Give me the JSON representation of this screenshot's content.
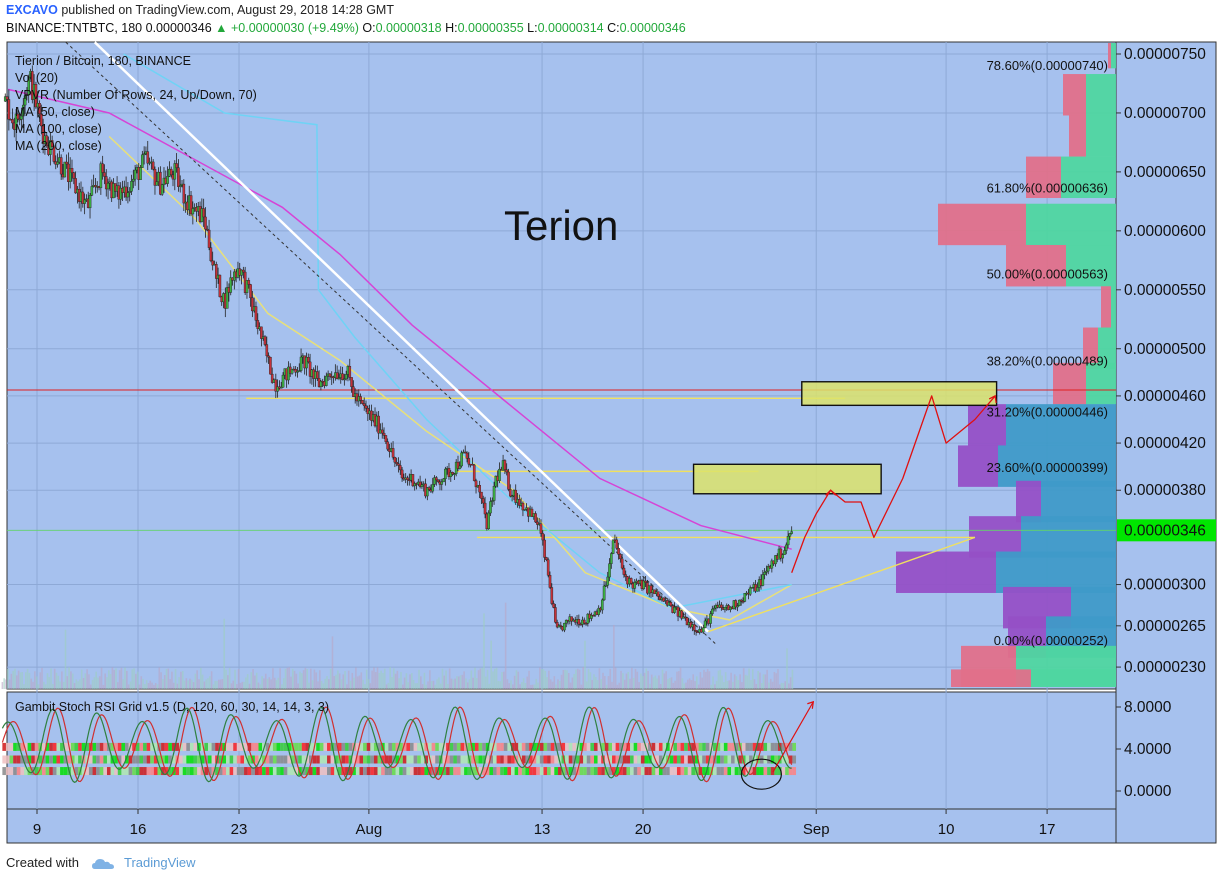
{
  "header": {
    "author": "EXCAVO",
    "published_text": "published on TradingView.com, August 29, 2018 14:28 GMT",
    "symbol": "BINANCE:TNTBTC, 180",
    "last": "0.00000346",
    "change": "▲ +0.00000030 (+9.49%)",
    "o_label": "O:",
    "o_value": "0.00000318",
    "h_label": "H:",
    "h_value": "0.00000355",
    "l_label": "L:",
    "l_value": "0.00000314",
    "c_label": "C:",
    "c_value": "0.00000346"
  },
  "colors": {
    "chart_bg": "#a6c1ee",
    "up_candle": "#3cb043",
    "down_candle": "#c4313a",
    "ma50": "#e8e07a",
    "ma100": "#6fd3f5",
    "ma200": "#d644d6",
    "vpvr_up": "#4fd6a0",
    "vpvr_down": "#e0708a",
    "vpvr_up_va": "#3f9ac8",
    "vpvr_down_va": "#9550c6",
    "zone_fill": "#dce36a",
    "price_tag": "#00e600",
    "arrow": "#e01010"
  },
  "legend": [
    "Tierion / Bitcoin, 180, BINANCE",
    "Vol (20)",
    "VPVR (Number Of Rows, 24, Up/Down, 70)",
    "MA (50, close)",
    "MA (100, close)",
    "MA (200, close)"
  ],
  "annotation_text": "Terion",
  "oscillator_title": "Gambit Stoch RSI Grid v1.5 (D, 120, 60, 30, 14, 14, 3, 3)",
  "footer": {
    "created_with": "Created with",
    "brand": "TradingView"
  },
  "chart_data": {
    "type": "candlestick",
    "title": "Tierion / Bitcoin, 180, BINANCE",
    "symbol": "BINANCE:TNTBTC",
    "interval": "180",
    "price_ticks": [
      {
        "value": 7.5e-06,
        "label": "0.00000750"
      },
      {
        "value": 7e-06,
        "label": "0.00000700"
      },
      {
        "value": 6.5e-06,
        "label": "0.00000650"
      },
      {
        "value": 6e-06,
        "label": "0.00000600"
      },
      {
        "value": 5.5e-06,
        "label": "0.00000550"
      },
      {
        "value": 5e-06,
        "label": "0.00000500"
      },
      {
        "value": 4.6e-06,
        "label": "0.00000460"
      },
      {
        "value": 4.2e-06,
        "label": "0.00000420"
      },
      {
        "value": 3.8e-06,
        "label": "0.00000380"
      },
      {
        "value": 3e-06,
        "label": "0.00000300"
      },
      {
        "value": 2.65e-06,
        "label": "0.00000265"
      },
      {
        "value": 2.3e-06,
        "label": "0.00000230"
      }
    ],
    "last_price": {
      "value": 3.46e-06,
      "label": "0.00000346"
    },
    "date_ticks": [
      {
        "day": 9,
        "label": "9"
      },
      {
        "day": 16,
        "label": "16"
      },
      {
        "day": 23,
        "label": "23"
      },
      {
        "day": 32,
        "label": "Aug"
      },
      {
        "day": 44,
        "label": "13"
      },
      {
        "day": 51,
        "label": "20"
      },
      {
        "day": 63,
        "label": "Sep"
      },
      {
        "day": 72,
        "label": "10"
      },
      {
        "day": 79,
        "label": "17"
      }
    ],
    "fib_levels": [
      {
        "ratio": "78.60%",
        "price": 7.4e-06,
        "label": "78.60%(0.00000740)"
      },
      {
        "ratio": "61.80%",
        "price": 6.36e-06,
        "label": "61.80%(0.00000636)"
      },
      {
        "ratio": "50.00%",
        "price": 5.63e-06,
        "label": "50.00%(0.00000563)"
      },
      {
        "ratio": "38.20%",
        "price": 4.89e-06,
        "label": "38.20%(0.00000489)"
      },
      {
        "ratio": "31.20%",
        "price": 4.46e-06,
        "label": "31.20%(0.00000446)"
      },
      {
        "ratio": "23.60%",
        "price": 3.99e-06,
        "label": "23.60%(0.00000399)"
      },
      {
        "ratio": "0.00%",
        "price": 2.52e-06,
        "label": "0.00%(0.00000252)"
      }
    ],
    "price_path": [
      [
        6.8,
        7.1e-06
      ],
      [
        7.5,
        6.9e-06
      ],
      [
        8.5,
        7.3e-06
      ],
      [
        9.5,
        6.8e-06
      ],
      [
        10.5,
        6.6e-06
      ],
      [
        11.5,
        6.4e-06
      ],
      [
        12.5,
        6.2e-06
      ],
      [
        13.5,
        6.5e-06
      ],
      [
        14.5,
        6.3e-06
      ],
      [
        15.5,
        6.4e-06
      ],
      [
        16.5,
        6.6e-06
      ],
      [
        17.5,
        6.4e-06
      ],
      [
        18.5,
        6.5e-06
      ],
      [
        19.2,
        6.3e-06
      ],
      [
        19.8,
        6.2e-06
      ],
      [
        20.6,
        6.1e-06
      ],
      [
        21.4,
        5.6e-06
      ],
      [
        22,
        5.4e-06
      ],
      [
        22.5,
        5.6e-06
      ],
      [
        23,
        5.7e-06
      ],
      [
        23.6,
        5.5e-06
      ],
      [
        24.3,
        5.2e-06
      ],
      [
        25,
        4.9e-06
      ],
      [
        25.5,
        4.7e-06
      ],
      [
        26.5,
        4.8e-06
      ],
      [
        27.5,
        4.9e-06
      ],
      [
        28.5,
        4.7e-06
      ],
      [
        29.5,
        4.8e-06
      ],
      [
        30.5,
        4.8e-06
      ],
      [
        31,
        4.6e-06
      ],
      [
        31.6,
        4.5e-06
      ],
      [
        32.3,
        4.4e-06
      ],
      [
        33,
        4.3e-06
      ],
      [
        33.6,
        4.1e-06
      ],
      [
        34.3,
        3.9e-06
      ],
      [
        35,
        3.9e-06
      ],
      [
        36,
        3.8e-06
      ],
      [
        37,
        3.9e-06
      ],
      [
        38,
        4e-06
      ],
      [
        38.6,
        4.1e-06
      ],
      [
        39.1,
        4e-06
      ],
      [
        39.6,
        3.8e-06
      ],
      [
        40.2,
        3.5e-06
      ],
      [
        40.8,
        3.9e-06
      ],
      [
        41.3,
        4e-06
      ],
      [
        41.8,
        3.8e-06
      ],
      [
        42.5,
        3.7e-06
      ],
      [
        43.2,
        3.6e-06
      ],
      [
        43.8,
        3.5e-06
      ],
      [
        44.4,
        3.1e-06
      ],
      [
        45,
        2.6e-06
      ],
      [
        46,
        2.7e-06
      ],
      [
        47,
        2.7e-06
      ],
      [
        48,
        2.8e-06
      ],
      [
        48.6,
        3.1e-06
      ],
      [
        49,
        3.4e-06
      ],
      [
        49.6,
        3.1e-06
      ],
      [
        50.2,
        3e-06
      ],
      [
        51,
        3e-06
      ],
      [
        52,
        2.9e-06
      ],
      [
        53,
        2.8e-06
      ],
      [
        54,
        2.7e-06
      ],
      [
        55,
        2.6e-06
      ],
      [
        56,
        2.8e-06
      ],
      [
        57,
        2.8e-06
      ],
      [
        58,
        2.9e-06
      ],
      [
        59,
        3e-06
      ],
      [
        60,
        3.2e-06
      ],
      [
        60.8,
        3.3e-06
      ],
      [
        61.3,
        3.46e-06
      ]
    ],
    "volume_peak_days": [
      11,
      22,
      29.5,
      40,
      40.5,
      41.5,
      47,
      49,
      61
    ],
    "moving_averages": [
      {
        "name": "MA (50, close)",
        "points": [
          [
            14,
            6.8e-06
          ],
          [
            20,
            6.1e-06
          ],
          [
            25,
            5.3e-06
          ],
          [
            30,
            4.9e-06
          ],
          [
            36,
            4.3e-06
          ],
          [
            42,
            3.8e-06
          ],
          [
            47,
            3.1e-06
          ],
          [
            53,
            2.8e-06
          ],
          [
            57,
            2.7e-06
          ],
          [
            61.3,
            3e-06
          ]
        ]
      },
      {
        "name": "MA (100, close)",
        "points": [
          [
            15,
            7.5e-06
          ],
          [
            22,
            7e-06
          ],
          [
            28.4,
            6.9e-06
          ],
          [
            28.5,
            5.5e-06
          ],
          [
            31,
            5.1e-06
          ],
          [
            36,
            4.4e-06
          ],
          [
            42,
            3.7e-06
          ],
          [
            48,
            3.1e-06
          ],
          [
            53,
            2.8e-06
          ],
          [
            61.3,
            3e-06
          ]
        ]
      },
      {
        "name": "MA (200, close)",
        "points": [
          [
            7,
            7.2e-06
          ],
          [
            14,
            7e-06
          ],
          [
            20,
            6.6e-06
          ],
          [
            26,
            6.2e-06
          ],
          [
            30,
            5.8e-06
          ],
          [
            35,
            5.2e-06
          ],
          [
            42,
            4.5e-06
          ],
          [
            48,
            3.9e-06
          ],
          [
            55,
            3.5e-06
          ],
          [
            61.3,
            3.3e-06
          ]
        ]
      }
    ],
    "trend_lines": [
      {
        "kind": "white_downtrend",
        "from": [
          13,
          7.6e-06
        ],
        "to": [
          55.5,
          2.6e-06
        ]
      },
      {
        "kind": "dotted_downtrend",
        "from": [
          11,
          7.6e-06
        ],
        "to": [
          56,
          2.5e-06
        ]
      }
    ],
    "horizontal_levels": [
      {
        "kind": "red_line",
        "price": 4.65e-06
      },
      {
        "kind": "yellow_line",
        "price": 4.58e-06,
        "from": 23.5,
        "to": 65
      },
      {
        "kind": "yellow_line",
        "price": 3.96e-06,
        "from": 38,
        "to": 59
      },
      {
        "kind": "triangle_top",
        "price": 3.4e-06,
        "from": 39.5,
        "to": 74
      }
    ],
    "triangle": {
      "apex": [
        55.5,
        2.6e-06
      ],
      "to": [
        74,
        3.4e-06
      ]
    },
    "target_zones": [
      {
        "from": 54.5,
        "to": 67.5,
        "high": 4.02e-06,
        "low": 3.77e-06
      },
      {
        "from": 62,
        "to": 75.5,
        "high": 4.72e-06,
        "low": 4.52e-06
      }
    ],
    "forecast_path": [
      [
        61.3,
        3.1e-06
      ],
      [
        62.2,
        3.4e-06
      ],
      [
        63,
        3.6e-06
      ],
      [
        64,
        3.8e-06
      ],
      [
        65,
        3.7e-06
      ],
      [
        66.1,
        3.7e-06
      ],
      [
        67,
        3.4e-06
      ],
      [
        69,
        3.9e-06
      ],
      [
        71,
        4.6e-06
      ],
      [
        72,
        4.2e-06
      ],
      [
        74,
        4.4e-06
      ],
      [
        75.4,
        4.6e-06
      ]
    ],
    "vpvr": [
      {
        "price": 7.55e-06,
        "up": 5,
        "down": 3,
        "value_area": false
      },
      {
        "price": 7.15e-06,
        "up": 30,
        "down": 23,
        "value_area": false
      },
      {
        "price": 6.8e-06,
        "up": 30,
        "down": 17,
        "value_area": false
      },
      {
        "price": 6.45e-06,
        "up": 55,
        "down": 35,
        "value_area": false
      },
      {
        "price": 6.05e-06,
        "up": 90,
        "down": 88,
        "value_area": false
      },
      {
        "price": 5.7e-06,
        "up": 50,
        "down": 60,
        "value_area": false
      },
      {
        "price": 5.35e-06,
        "up": 5,
        "down": 10,
        "value_area": false
      },
      {
        "price": 5e-06,
        "up": 18,
        "down": 15,
        "value_area": false
      },
      {
        "price": 4.7e-06,
        "up": 30,
        "down": 33,
        "value_area": false
      },
      {
        "price": 4.35e-06,
        "up": 110,
        "down": 38,
        "value_area": true
      },
      {
        "price": 4e-06,
        "up": 118,
        "down": 40,
        "value_area": true
      },
      {
        "price": 3.7e-06,
        "up": 75,
        "down": 25,
        "value_area": true
      },
      {
        "price": 3.4e-06,
        "up": 95,
        "down": 52,
        "value_area": true
      },
      {
        "price": 3.1e-06,
        "up": 120,
        "down": 100,
        "value_area": true
      },
      {
        "price": 2.8e-06,
        "up": 45,
        "down": 68,
        "value_area": true
      },
      {
        "price": 2.55e-06,
        "up": 70,
        "down": 38,
        "value_area": true
      },
      {
        "price": 2.3e-06,
        "up": 100,
        "down": 55,
        "value_area": false
      },
      {
        "price": 2.1e-06,
        "up": 85,
        "down": 80,
        "value_area": false
      }
    ],
    "oscillator": {
      "name": "Gambit Stoch RSI Grid v1.5 (D, 120, 60, 30, 14, 14, 3, 3)",
      "y_ticks": [
        {
          "value": 8,
          "label": "8.0000"
        },
        {
          "value": 4,
          "label": "4.0000"
        },
        {
          "value": 0,
          "label": "0.0000"
        }
      ],
      "ylim": [
        -1.5,
        9.2
      ],
      "wave_amplitude": 3.6,
      "wave_period_days": 3.1
    }
  }
}
